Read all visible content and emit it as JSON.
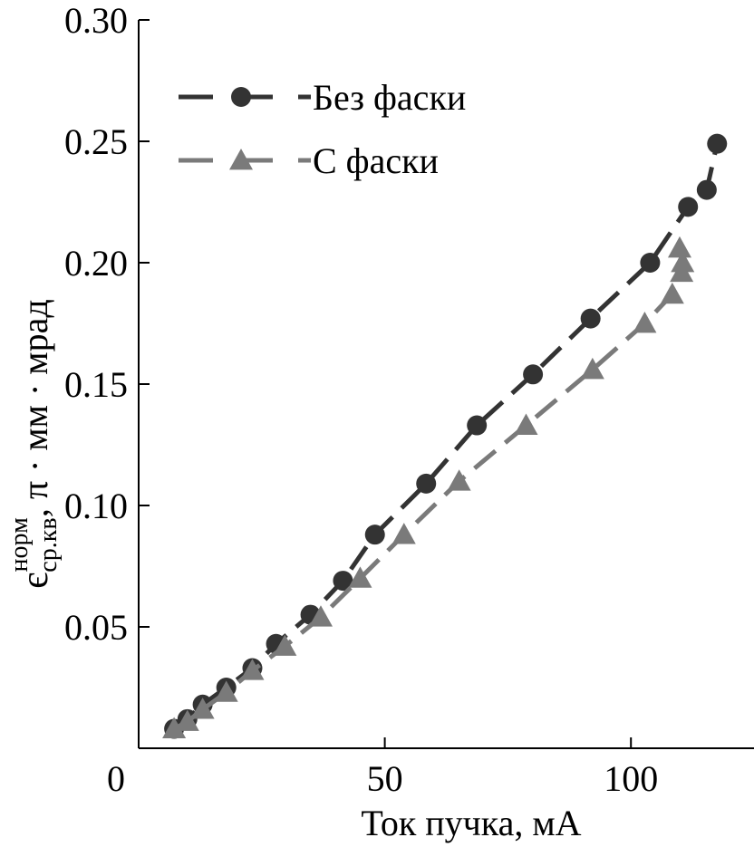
{
  "chart_data": {
    "type": "line",
    "xlabel": "Ток пучка, мА",
    "ylabel": {
      "base": "є",
      "superscript": "норм",
      "subscript": "ср.кв",
      "suffix": ", π · мм · мрад"
    },
    "xlim": [
      0,
      125
    ],
    "ylim": [
      0,
      0.3
    ],
    "xticks": [
      {
        "value": 0,
        "label": "0"
      },
      {
        "value": 50,
        "label": "50"
      },
      {
        "value": 100,
        "label": "100"
      }
    ],
    "yticks": [
      {
        "value": 0.05,
        "label": "0.05"
      },
      {
        "value": 0.1,
        "label": "0.10"
      },
      {
        "value": 0.15,
        "label": "0.15"
      },
      {
        "value": 0.2,
        "label": "0.20"
      },
      {
        "value": 0.25,
        "label": "0.25"
      },
      {
        "value": 0.3,
        "label": "0.30"
      }
    ],
    "grid": false,
    "legend_position": "top-left",
    "series": [
      {
        "name": "Без фаски",
        "marker": "circle",
        "color": "#333333",
        "x": [
          7.2,
          9.9,
          13.0,
          17.8,
          23.1,
          27.9,
          34.9,
          41.5,
          48.0,
          58.4,
          68.7,
          80.1,
          91.8,
          103.9,
          111.6,
          115.4,
          117.5
        ],
        "y": [
          0.008,
          0.012,
          0.018,
          0.025,
          0.033,
          0.043,
          0.055,
          0.069,
          0.088,
          0.109,
          0.133,
          0.154,
          0.177,
          0.2,
          0.223,
          0.23,
          0.249
        ]
      },
      {
        "name": "С фаски",
        "marker": "triangle",
        "color": "#7a7a7a",
        "x": [
          7.2,
          9.9,
          13.0,
          17.8,
          23.1,
          29.7,
          37.0,
          45.0,
          53.9,
          65.1,
          78.7,
          92.2,
          102.8,
          108.4,
          110.3,
          110.5,
          109.9
        ],
        "y": [
          0.008,
          0.011,
          0.016,
          0.023,
          0.032,
          0.042,
          0.054,
          0.07,
          0.088,
          0.11,
          0.133,
          0.156,
          0.175,
          0.187,
          0.196,
          0.2,
          0.206
        ]
      }
    ]
  }
}
